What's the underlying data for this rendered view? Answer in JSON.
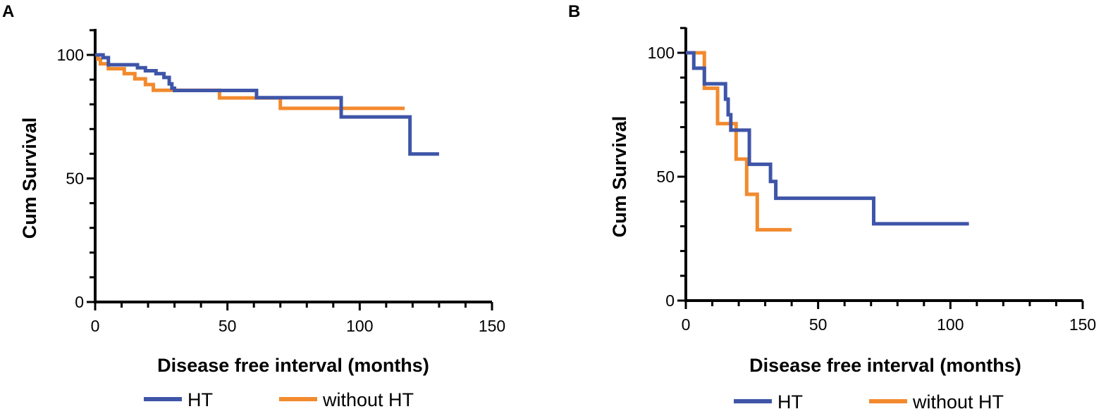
{
  "colors": {
    "HT": "#3e55a8",
    "without_HT": "#f28a2e",
    "axis": "#000000"
  },
  "chart_data": [
    {
      "panel": "A",
      "type": "line",
      "step": true,
      "xlabel": "Disease free interval (months)",
      "ylabel": "Cum Survival",
      "xlim": [
        0,
        150
      ],
      "ylim": [
        0,
        110
      ],
      "xticks": [
        0,
        50,
        100,
        150
      ],
      "yticks": [
        0,
        50,
        100
      ],
      "legend": [
        "HT",
        "without HT"
      ],
      "series": [
        {
          "name": "HT",
          "x": [
            0,
            3,
            5,
            16,
            19,
            23,
            26,
            28,
            29,
            30,
            61,
            93,
            119,
            130
          ],
          "y": [
            100,
            98.9,
            96,
            94.8,
            93.6,
            92.4,
            90.9,
            88.3,
            86.5,
            85.6,
            82.7,
            74.9,
            59.9,
            59.9
          ]
        },
        {
          "name": "without HT",
          "x": [
            0,
            1,
            2,
            5,
            11,
            15,
            19,
            22,
            47,
            70,
            117
          ],
          "y": [
            100,
            98.3,
            96.4,
            94.4,
            92.4,
            90.3,
            88,
            85.7,
            82.6,
            78.4,
            78.4
          ]
        }
      ]
    },
    {
      "panel": "B",
      "type": "line",
      "step": true,
      "xlabel": "Disease free interval (months)",
      "ylabel": "Cum Survival",
      "xlim": [
        0,
        150
      ],
      "ylim": [
        0,
        110
      ],
      "xticks": [
        0,
        50,
        100,
        150
      ],
      "yticks": [
        0,
        50,
        100
      ],
      "legend": [
        "HT",
        "without HT"
      ],
      "series": [
        {
          "name": "HT",
          "x": [
            0,
            3,
            7,
            15,
            16,
            17,
            18,
            24,
            32,
            34,
            71,
            107
          ],
          "y": [
            100,
            93.8,
            87.5,
            81.3,
            75,
            68.8,
            68.8,
            55,
            48.1,
            41.3,
            31,
            31
          ]
        },
        {
          "name": "without HT",
          "x": [
            0,
            6,
            7,
            12,
            19,
            23,
            27,
            40
          ],
          "y": [
            100,
            100,
            85.7,
            71.4,
            57.1,
            42.9,
            28.6,
            28.6
          ]
        }
      ]
    }
  ]
}
